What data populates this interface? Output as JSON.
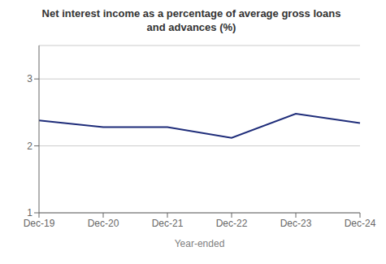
{
  "chart_data": {
    "type": "line",
    "title": "Net interest income as a percentage of average gross loans\nand advances (%)",
    "xlabel": "Year-ended",
    "categories": [
      "Dec-19",
      "Dec-20",
      "Dec-21",
      "Dec-22",
      "Dec-23",
      "Dec-24"
    ],
    "series": [
      {
        "name": "Net interest income as a percentage of average gross loans and advances",
        "color": "#1f2d7a",
        "values": [
          2.38,
          2.28,
          2.28,
          2.12,
          2.48,
          2.34
        ]
      }
    ],
    "ylim": [
      1,
      3.5
    ],
    "yticks": [
      1,
      2,
      3
    ],
    "grid": true
  }
}
